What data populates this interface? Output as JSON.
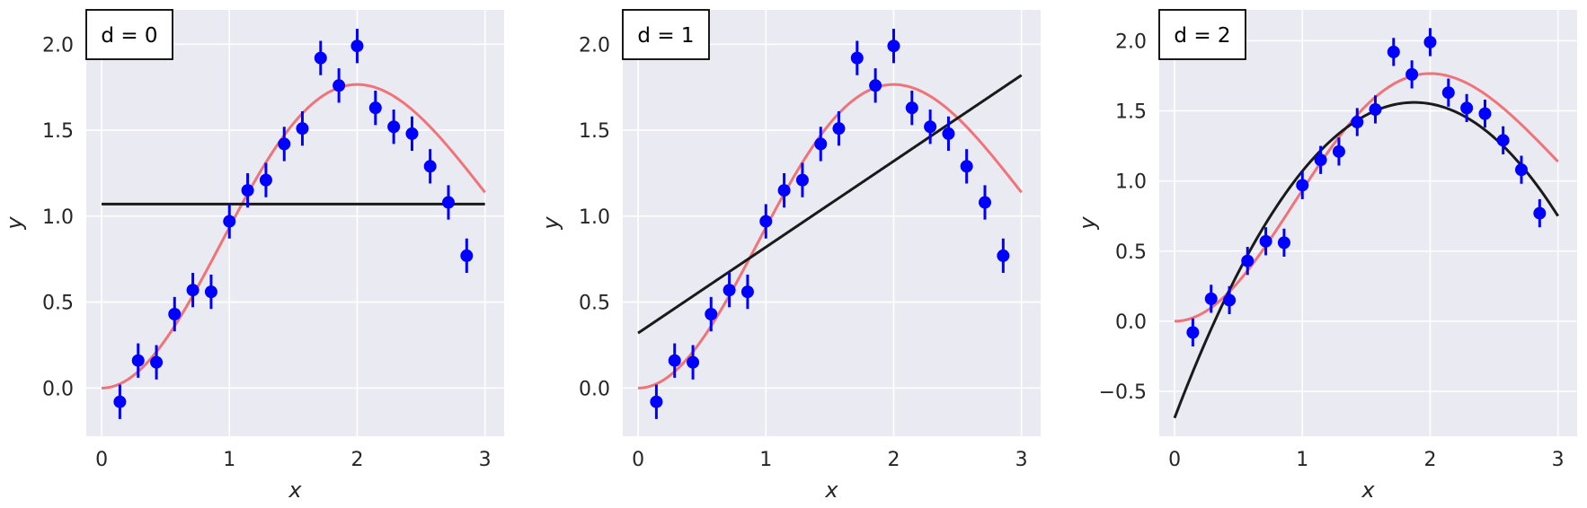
{
  "colors": {
    "plot_background": "#eaeaf2",
    "grid": "#ffffff",
    "data_points": "#0000ff",
    "true_function": "#f07378",
    "fit_line": "#1a1a1a",
    "tick_text": "#262626"
  },
  "chart_data": [
    {
      "type": "scatter",
      "title": "",
      "annotation": "d = 0",
      "xlabel": "x",
      "ylabel": "y",
      "xlim": [
        -0.12,
        3.15
      ],
      "ylim": [
        -0.28,
        2.2
      ],
      "xticks": [
        0,
        1,
        2,
        3
      ],
      "yticks": [
        0.0,
        0.5,
        1.0,
        1.5,
        2.0
      ],
      "ytick_labels": [
        "0.0",
        "0.5",
        "1.0",
        "1.5",
        "2.0"
      ],
      "grid": true,
      "data": {
        "x": [
          0.143,
          0.286,
          0.429,
          0.571,
          0.714,
          0.857,
          1.0,
          1.143,
          1.286,
          1.429,
          1.571,
          1.714,
          1.857,
          2.0,
          2.143,
          2.286,
          2.429,
          2.571,
          2.714,
          2.857
        ],
        "y": [
          -0.08,
          0.16,
          0.15,
          0.43,
          0.57,
          0.56,
          0.97,
          1.15,
          1.21,
          1.42,
          1.51,
          1.92,
          1.76,
          1.99,
          1.63,
          1.52,
          1.48,
          1.29,
          1.08,
          0.77
        ],
        "yerr": 0.1
      },
      "true_curve": {
        "x_range": [
          0,
          3
        ],
        "function": "x^2 * exp(-(x/2)^2) * 1.2"
      },
      "fit_polynomial": {
        "degree": 0,
        "coefficients": [
          1.07
        ]
      }
    },
    {
      "type": "scatter",
      "title": "",
      "annotation": "d = 1",
      "xlabel": "x",
      "ylabel": "y",
      "xlim": [
        -0.12,
        3.15
      ],
      "ylim": [
        -0.28,
        2.2
      ],
      "xticks": [
        0,
        1,
        2,
        3
      ],
      "yticks": [
        0.0,
        0.5,
        1.0,
        1.5,
        2.0
      ],
      "ytick_labels": [
        "0.0",
        "0.5",
        "1.0",
        "1.5",
        "2.0"
      ],
      "grid": true,
      "data": {
        "x": [
          0.143,
          0.286,
          0.429,
          0.571,
          0.714,
          0.857,
          1.0,
          1.143,
          1.286,
          1.429,
          1.571,
          1.714,
          1.857,
          2.0,
          2.143,
          2.286,
          2.429,
          2.571,
          2.714,
          2.857
        ],
        "y": [
          -0.08,
          0.16,
          0.15,
          0.43,
          0.57,
          0.56,
          0.97,
          1.15,
          1.21,
          1.42,
          1.51,
          1.92,
          1.76,
          1.99,
          1.63,
          1.52,
          1.48,
          1.29,
          1.08,
          0.77
        ],
        "yerr": 0.1
      },
      "true_curve": {
        "x_range": [
          0,
          3
        ],
        "function": "x^2 * exp(-(x/2)^2) * 1.2"
      },
      "fit_polynomial": {
        "degree": 1,
        "coefficients": [
          0.32,
          0.5
        ]
      }
    },
    {
      "type": "scatter",
      "title": "",
      "annotation": "d = 2",
      "xlabel": "x",
      "ylabel": "y",
      "xlim": [
        -0.12,
        3.15
      ],
      "ylim": [
        -0.82,
        2.22
      ],
      "xticks": [
        0,
        1,
        2,
        3
      ],
      "yticks": [
        -0.5,
        0.0,
        0.5,
        1.0,
        1.5,
        2.0
      ],
      "ytick_labels": [
        "−0.5",
        "0.0",
        "0.5",
        "1.0",
        "1.5",
        "2.0"
      ],
      "grid": true,
      "data": {
        "x": [
          0.143,
          0.286,
          0.429,
          0.571,
          0.714,
          0.857,
          1.0,
          1.143,
          1.286,
          1.429,
          1.571,
          1.714,
          1.857,
          2.0,
          2.143,
          2.286,
          2.429,
          2.571,
          2.714,
          2.857
        ],
        "y": [
          -0.08,
          0.16,
          0.15,
          0.43,
          0.57,
          0.56,
          0.97,
          1.15,
          1.21,
          1.42,
          1.51,
          1.92,
          1.76,
          1.99,
          1.63,
          1.52,
          1.48,
          1.29,
          1.08,
          0.77
        ],
        "yerr": 0.1
      },
      "true_curve": {
        "x_range": [
          0,
          3
        ],
        "function": "x^2 * exp(-(x/2)^2) * 1.2"
      },
      "fit_polynomial": {
        "degree": 2,
        "coefficients": [
          -0.69,
          2.4,
          -0.64
        ]
      }
    }
  ]
}
